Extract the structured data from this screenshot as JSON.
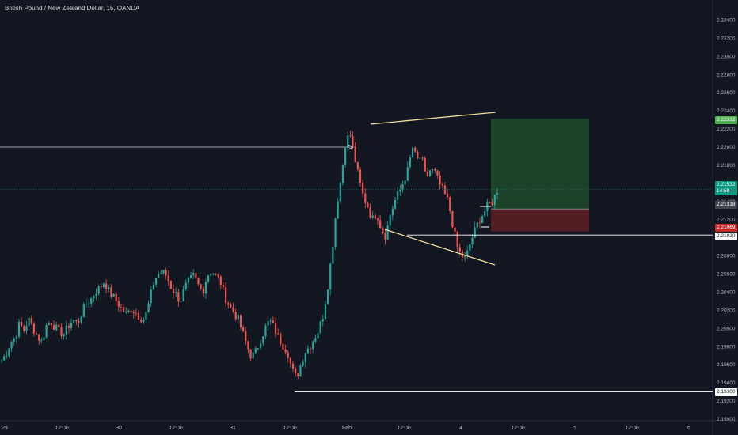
{
  "header": {
    "symbol_title": "British Pound / New Zealand Dollar, 15, OANDA"
  },
  "colors": {
    "background": "#131722",
    "up": "#26a69a",
    "down": "#ef5350",
    "trendline": "#f0e0a0",
    "profit_zone": "#1e4a2c",
    "loss_zone": "#5a1e24",
    "price_line": "#1d6b64"
  },
  "chart_data": {
    "type": "candlestick",
    "yaxis": {
      "ticks": [
        "2.23400",
        "2.23200",
        "2.23000",
        "2.22800",
        "2.22600",
        "2.22400",
        "2.22200",
        "2.22000",
        "2.21800",
        "2.21600",
        "2.21400",
        "2.21200",
        "2.21000",
        "2.20800",
        "2.20600",
        "2.20400",
        "2.20200",
        "2.20000",
        "2.19800",
        "2.19600",
        "2.19400",
        "2.19200",
        "2.19000"
      ],
      "range": [
        2.19,
        2.235
      ]
    },
    "xaxis": {
      "ticks": [
        "29",
        "12:00",
        "30",
        "12:00",
        "31",
        "12:00",
        "Feb",
        "12:00",
        "4",
        "12:00",
        "5",
        "12:00",
        "6"
      ]
    },
    "current_price": "2.21532",
    "countdown": "14:58",
    "price_labels": {
      "target": "2.22312",
      "entry": "2.21318",
      "stop": "2.21069",
      "support_upper": "2.21030",
      "support_lower": "2.19300"
    },
    "price_path": [
      [
        2.1965,
        2.1972
      ],
      [
        2.1985,
        2.199
      ],
      [
        2.2005,
        2.1998
      ],
      [
        2.201,
        2.2001
      ],
      [
        2.1992,
        2.1985
      ],
      [
        2.2003,
        2.2008
      ],
      [
        2.2001,
        2.1996
      ],
      [
        2.1994,
        2.2003
      ],
      [
        2.201,
        2.2005
      ],
      [
        2.2018,
        2.2028
      ],
      [
        2.2032,
        2.2041
      ],
      [
        2.2045,
        2.2052
      ],
      [
        2.2041,
        2.2035
      ],
      [
        2.2028,
        2.2021
      ],
      [
        2.2015,
        2.2022
      ],
      [
        2.2018,
        2.2012
      ],
      [
        2.201,
        2.2028
      ],
      [
        2.205,
        2.206
      ],
      [
        2.2062,
        2.2058
      ],
      [
        2.2045,
        2.2038
      ],
      [
        2.203,
        2.2045
      ],
      [
        2.2052,
        2.2058
      ],
      [
        2.2048,
        2.204
      ],
      [
        2.2058,
        2.2064
      ],
      [
        2.2058,
        2.2052
      ],
      [
        2.2035,
        2.2025
      ],
      [
        2.2018,
        2.201
      ],
      [
        2.1995,
        2.198
      ],
      [
        2.1968,
        2.1975
      ],
      [
        2.1988,
        2.2
      ],
      [
        2.2009,
        2.2001
      ],
      [
        2.199,
        2.1982
      ],
      [
        2.1975,
        2.1955
      ],
      [
        2.1945,
        2.196
      ],
      [
        2.1975,
        2.198
      ],
      [
        2.199,
        2.1998
      ],
      [
        2.2015,
        2.2045
      ],
      [
        2.2085,
        2.2135
      ],
      [
        2.2165,
        2.2205
      ],
      [
        2.2215,
        2.219
      ],
      [
        2.2165,
        2.2145
      ],
      [
        2.2135,
        2.212
      ],
      [
        2.2128,
        2.211
      ],
      [
        2.2102,
        2.2125
      ],
      [
        2.214,
        2.215
      ],
      [
        2.2162,
        2.2175
      ],
      [
        2.22,
        2.2185
      ],
      [
        2.219,
        2.2165
      ],
      [
        2.2175,
        2.2172
      ],
      [
        2.216,
        2.215
      ],
      [
        2.214,
        2.2115
      ],
      [
        2.209,
        2.208
      ],
      [
        2.2078,
        2.2095
      ],
      [
        2.2108,
        2.212
      ],
      [
        2.2128,
        2.2136
      ],
      [
        2.214,
        2.2153
      ]
    ],
    "annotations": [
      "horizontal arrow at 2.22000",
      "rising upper trendline",
      "falling lower trendline",
      "long position risk/reward box"
    ]
  }
}
